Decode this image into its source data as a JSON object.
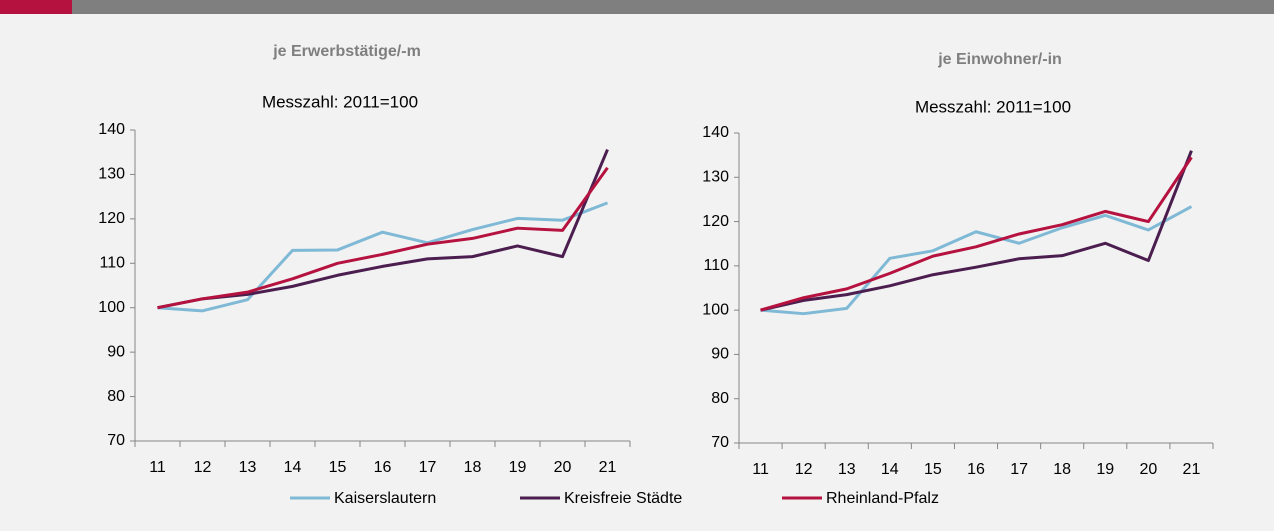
{
  "chart_data": [
    {
      "type": "line",
      "title": "je Erwerbstätige/-m",
      "subtitle": "Messzahl: 2011=100",
      "categories": [
        "11",
        "12",
        "13",
        "14",
        "15",
        "16",
        "17",
        "18",
        "19",
        "20",
        "21"
      ],
      "ylim": [
        70,
        140
      ],
      "yticks": [
        70,
        80,
        90,
        100,
        110,
        120,
        130,
        140
      ],
      "grid": false,
      "series": [
        {
          "name": "Kaiserslautern",
          "color": "#7fb9d6",
          "values": [
            100,
            99.3,
            101.8,
            112.9,
            113,
            117,
            114.6,
            117.6,
            120.1,
            119.7,
            123.6
          ]
        },
        {
          "name": "Kreisfreie Städte",
          "color": "#4b1e4f",
          "values": [
            100,
            102,
            103,
            104.8,
            107.3,
            109.3,
            111,
            111.5,
            113.9,
            111.5,
            135.6
          ]
        },
        {
          "name": "Rheinland-Pfalz",
          "color": "#b5123f",
          "values": [
            100,
            102,
            103.5,
            106.5,
            110,
            112,
            114.3,
            115.6,
            117.9,
            117.4,
            131.5
          ]
        }
      ]
    },
    {
      "type": "line",
      "title": "je Einwohner/-in",
      "subtitle": "Messzahl: 2011=100",
      "categories": [
        "11",
        "12",
        "13",
        "14",
        "15",
        "16",
        "17",
        "18",
        "19",
        "20",
        "21"
      ],
      "ylim": [
        70,
        140
      ],
      "yticks": [
        70,
        80,
        90,
        100,
        110,
        120,
        130,
        140
      ],
      "grid": false,
      "series": [
        {
          "color": "#7fb9d6",
          "values": [
            100,
            99.2,
            100.4,
            111.7,
            113.4,
            117.7,
            115.1,
            118.6,
            121.4,
            118.1,
            123.4
          ]
        },
        {
          "color": "#4b1e4f",
          "values": [
            100,
            102.2,
            103.5,
            105.5,
            108,
            109.7,
            111.6,
            112.3,
            115.1,
            111.2,
            136
          ]
        },
        {
          "color": "#b5123f",
          "values": [
            100,
            102.8,
            104.8,
            108.3,
            112.2,
            114.3,
            117.2,
            119.3,
            122.3,
            120,
            134.5
          ]
        }
      ]
    }
  ]
}
